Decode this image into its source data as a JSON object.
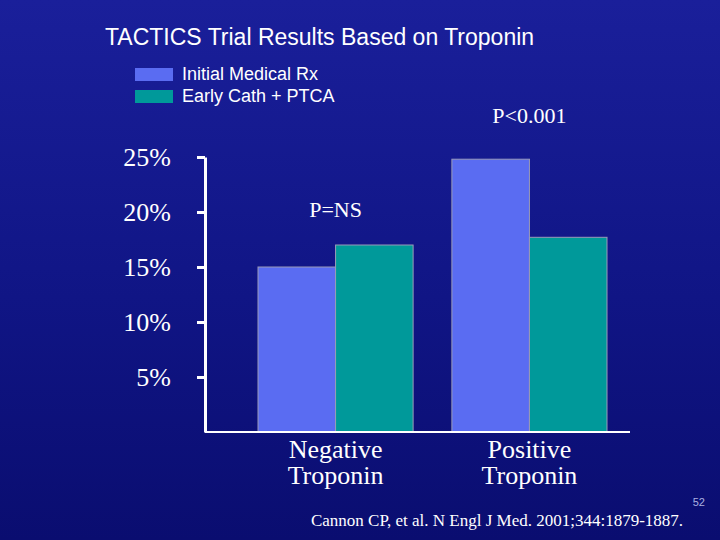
{
  "chart_data": {
    "type": "bar",
    "title": "TACTICS Trial Results Based on Troponin",
    "categories": [
      "Negative Troponin",
      "Positive Troponin"
    ],
    "series": [
      {
        "name": "Initial Medical Rx",
        "color": "#5a6cf2",
        "values": [
          15.0,
          24.8
        ]
      },
      {
        "name": "Early Cath + PTCA",
        "color": "#00999a",
        "values": [
          17.0,
          17.7
        ]
      }
    ],
    "ylim": [
      0,
      25
    ],
    "yticks": [
      {
        "value": 5,
        "label": "5%"
      },
      {
        "value": 10,
        "label": "10%"
      },
      {
        "value": 15,
        "label": "15%"
      },
      {
        "value": 20,
        "label": "20%"
      },
      {
        "value": 25,
        "label": "25%"
      }
    ],
    "annotations": [
      "P=NS",
      "P<0.001"
    ],
    "source": "Cannon CP, et al. N Engl J Med. 2001;344:1879-1887.",
    "slide_number": "52",
    "legend": "top-left"
  }
}
